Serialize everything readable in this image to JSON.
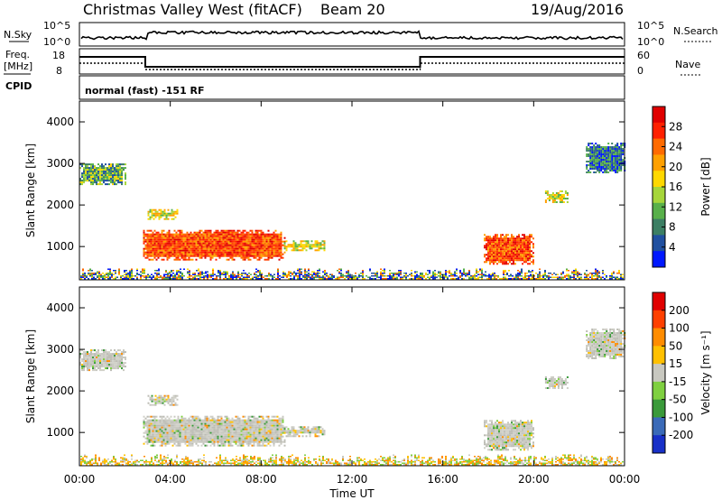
{
  "header": {
    "title": "Christmas Valley West (fitACF)",
    "beam": "Beam 20",
    "date": "19/Aug/2016"
  },
  "top_panels": {
    "nsky_label": "N.Sky",
    "nsky_ticks": [
      "10^5",
      "10^0"
    ],
    "nsky_right_ticks": [
      "10^5",
      "10^0"
    ],
    "nsearch_label": "N.Search",
    "freq_label": "Freq.",
    "freq_unit": "[MHz]",
    "freq_ticks": [
      "18",
      "8"
    ],
    "nave_ticks": [
      "60",
      "0"
    ],
    "nave_label": "Nave",
    "cpid_label": "CPID",
    "cpid_text": "normal (fast) -151 RF"
  },
  "chart_data": [
    {
      "type": "heatmap",
      "panel": "power",
      "ylabel": "Slant Range [km]",
      "y_ticks": [
        1000,
        2000,
        3000,
        4000
      ],
      "ylim": [
        200,
        4500
      ],
      "xlim": [
        0,
        24
      ],
      "colorbar_label": "Power [dB]",
      "colorbar_ticks": [
        "4",
        "8",
        "12",
        "16",
        "20",
        "24",
        "28"
      ],
      "colorbar_colors": [
        "#0018ff",
        "#2050a0",
        "#3c7f64",
        "#58b04a",
        "#a6d63a",
        "#ffd800",
        "#ffa000",
        "#ff6a00",
        "#ff2000",
        "#e00000"
      ],
      "features": [
        {
          "x": [
            0.0,
            2.0
          ],
          "y": [
            2500,
            3000
          ],
          "level": "low-mid"
        },
        {
          "x": [
            2.8,
            9.0
          ],
          "y": [
            700,
            1400
          ],
          "level": "high"
        },
        {
          "x": [
            3.0,
            4.3
          ],
          "y": [
            1650,
            1900
          ],
          "level": "mid"
        },
        {
          "x": [
            9.0,
            10.8
          ],
          "y": [
            900,
            1150
          ],
          "level": "mid"
        },
        {
          "x": [
            17.8,
            20.0
          ],
          "y": [
            600,
            1300
          ],
          "level": "high"
        },
        {
          "x": [
            20.5,
            21.5
          ],
          "y": [
            2050,
            2350
          ],
          "level": "mid"
        },
        {
          "x": [
            22.3,
            24.0
          ],
          "y": [
            2800,
            3500
          ],
          "level": "low"
        }
      ]
    },
    {
      "type": "heatmap",
      "panel": "velocity",
      "ylabel": "Slant Range [km]",
      "y_ticks": [
        1000,
        2000,
        3000,
        4000
      ],
      "ylim": [
        200,
        4500
      ],
      "xlim": [
        0,
        24
      ],
      "colorbar_label": "Velocity [m s⁻¹]",
      "colorbar_ticks": [
        "200",
        "100",
        "50",
        "15",
        "-15",
        "-50",
        "-100",
        "-200"
      ],
      "colorbar_colors": [
        "#1830c8",
        "#3a6ab8",
        "#3a9a3a",
        "#7fd040",
        "#c8c8c0",
        "#ffc000",
        "#ff8c00",
        "#ff4000",
        "#e00000"
      ],
      "x_ticks": [
        "00:00",
        "04:00",
        "08:00",
        "12:00",
        "16:00",
        "20:00",
        "00:00"
      ],
      "xlabel": "Time UT"
    }
  ]
}
